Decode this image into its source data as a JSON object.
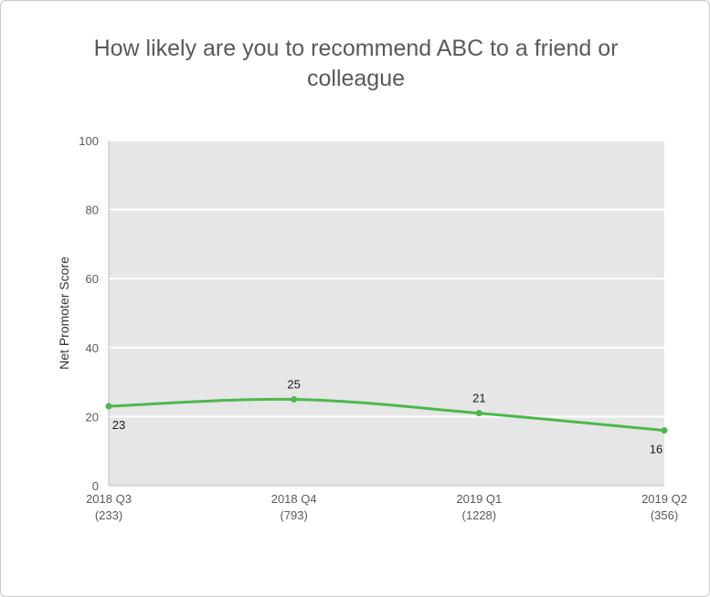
{
  "chart_data": {
    "type": "line",
    "title": "How likely are you to recommend ABC to a friend or colleague",
    "ylabel": "Net Promoter Score",
    "xlabel": "",
    "ylim": [
      0,
      100
    ],
    "yticks": [
      0,
      20,
      40,
      60,
      80,
      100
    ],
    "categories": [
      {
        "label": "2018 Q3",
        "sub": "(233)"
      },
      {
        "label": "2018 Q4",
        "sub": "(793)"
      },
      {
        "label": "2019 Q1",
        "sub": "(1228)"
      },
      {
        "label": "2019 Q2",
        "sub": "(356)"
      }
    ],
    "series": [
      {
        "values": [
          23,
          25,
          21,
          16
        ],
        "color": "#4cb84c"
      }
    ],
    "data_label_positions": [
      "below",
      "above",
      "above",
      "below"
    ],
    "grid": true,
    "plot_background": "#e6e6e6",
    "gridline_color": "#ffffff"
  }
}
